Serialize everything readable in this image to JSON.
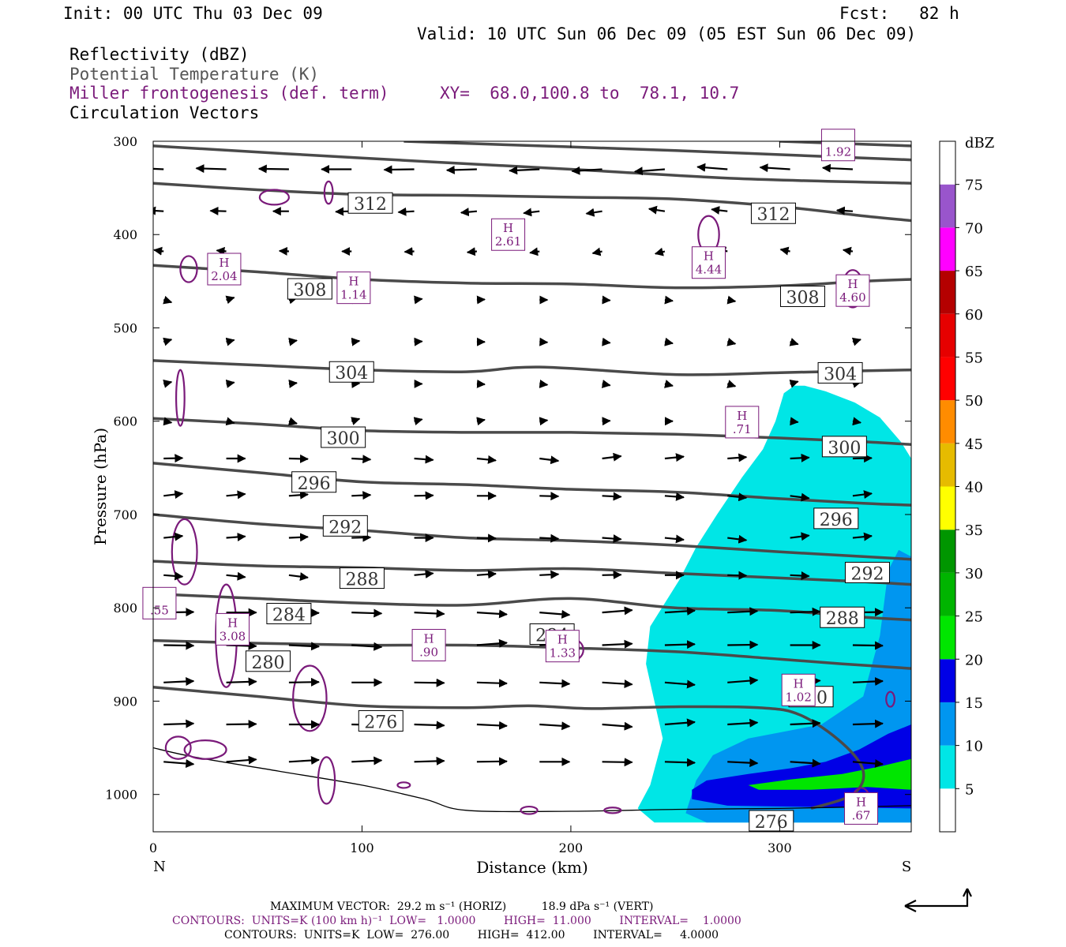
{
  "header": {
    "init": "Init: 00 UTC Thu 03 Dec 09",
    "fcst": "Fcst:   82 h",
    "valid": "Valid: 10 UTC Sun 06 Dec 09 (05 EST Sun 06 Dec 09)"
  },
  "fields": {
    "reflectivity": "Reflectivity (dBZ)",
    "theta": "Potential Temperature (K)",
    "frontogenesis": "Miller frontogenesis (def. term)",
    "xy": "XY=  68.0,100.8 to  78.1, 10.7",
    "vectors": "Circulation Vectors"
  },
  "footer": {
    "vector_line": "MAXIMUM VECTOR:  29.2 m s⁻¹ (HORIZ)          18.9 dPa s⁻¹ (VERT)",
    "contours_fronto": "CONTOURS:  UNITS=K (100 km h)⁻¹  LOW=   1.0000        HIGH=  11.000        INTERVAL=    1.0000",
    "contours_theta": "CONTOURS:  UNITS=K  LOW=  276.00        HIGH=  412.00        INTERVAL=     4.0000"
  },
  "colors": {
    "theta": "#4a4a4a",
    "fronto": "#7a1a7a",
    "vectors": "#000000"
  },
  "chart_data": {
    "type": "cross-section",
    "xlabel": "Distance (km)",
    "ylabel": "Pressure (hPa)",
    "xlim": [
      0,
      363
    ],
    "ylim": [
      300,
      1040
    ],
    "x_ticks": [
      0,
      100,
      200,
      300
    ],
    "y_ticks": [
      300,
      400,
      500,
      600,
      700,
      800,
      900,
      1000
    ],
    "endpoints": {
      "left": "N",
      "right": "S"
    },
    "colorbar": {
      "title": "dBZ",
      "levels": [
        5,
        10,
        15,
        20,
        25,
        30,
        35,
        40,
        45,
        50,
        55,
        60,
        65,
        70,
        75
      ],
      "colors": [
        "#ffffff",
        "#00e6e6",
        "#0096f0",
        "#0000e6",
        "#00e600",
        "#00b400",
        "#009600",
        "#ffff00",
        "#e6bb00",
        "#ff8c00",
        "#ff0000",
        "#e60000",
        "#b40000",
        "#ff00ff",
        "#9955cc",
        "#ffffff"
      ]
    },
    "theta_contours": [
      {
        "value": 276,
        "points": [
          [
            0,
            885
          ],
          [
            50,
            895
          ],
          [
            100,
            905
          ],
          [
            150,
            907
          ],
          [
            180,
            905
          ],
          [
            210,
            908
          ],
          [
            250,
            906
          ],
          [
            290,
            907
          ],
          [
            310,
            915
          ],
          [
            330,
            945
          ],
          [
            340,
            975
          ],
          [
            335,
            1000
          ],
          [
            315,
            1015
          ]
        ]
      },
      {
        "value": 280,
        "points": [
          [
            0,
            835
          ],
          [
            50,
            838
          ],
          [
            100,
            840
          ],
          [
            150,
            840
          ],
          [
            200,
            843
          ],
          [
            250,
            847
          ],
          [
            300,
            855
          ],
          [
            330,
            860
          ],
          [
            363,
            865
          ]
        ]
      },
      {
        "value": 284,
        "points": [
          [
            0,
            785
          ],
          [
            50,
            790
          ],
          [
            100,
            795
          ],
          [
            150,
            797
          ],
          [
            200,
            790
          ],
          [
            250,
            800
          ],
          [
            300,
            803
          ],
          [
            340,
            810
          ],
          [
            363,
            813
          ]
        ]
      },
      {
        "value": 288,
        "points": [
          [
            0,
            750
          ],
          [
            50,
            755
          ],
          [
            100,
            757
          ],
          [
            150,
            760
          ],
          [
            200,
            758
          ],
          [
            250,
            763
          ],
          [
            300,
            768
          ],
          [
            340,
            772
          ],
          [
            363,
            775
          ]
        ]
      },
      {
        "value": 292,
        "points": [
          [
            0,
            700
          ],
          [
            50,
            710
          ],
          [
            100,
            717
          ],
          [
            150,
            725
          ],
          [
            200,
            728
          ],
          [
            250,
            733
          ],
          [
            300,
            740
          ],
          [
            340,
            745
          ],
          [
            363,
            748
          ]
        ]
      },
      {
        "value": 296,
        "points": [
          [
            0,
            645
          ],
          [
            50,
            655
          ],
          [
            100,
            665
          ],
          [
            150,
            668
          ],
          [
            200,
            673
          ],
          [
            250,
            676
          ],
          [
            300,
            683
          ],
          [
            340,
            688
          ],
          [
            363,
            690
          ]
        ]
      },
      {
        "value": 300,
        "points": [
          [
            0,
            597
          ],
          [
            50,
            603
          ],
          [
            100,
            610
          ],
          [
            150,
            612
          ],
          [
            200,
            612
          ],
          [
            250,
            614
          ],
          [
            300,
            618
          ],
          [
            340,
            622
          ],
          [
            363,
            625
          ]
        ]
      },
      {
        "value": 304,
        "points": [
          [
            0,
            535
          ],
          [
            50,
            540
          ],
          [
            100,
            545
          ],
          [
            150,
            547
          ],
          [
            185,
            542
          ],
          [
            250,
            550
          ],
          [
            300,
            548
          ],
          [
            340,
            546
          ],
          [
            363,
            545
          ]
        ]
      },
      {
        "value": 308,
        "points": [
          [
            0,
            433
          ],
          [
            50,
            440
          ],
          [
            100,
            448
          ],
          [
            150,
            452
          ],
          [
            200,
            453
          ],
          [
            250,
            457
          ],
          [
            300,
            455
          ],
          [
            340,
            450
          ],
          [
            363,
            448
          ]
        ]
      },
      {
        "value": 312,
        "points": [
          [
            0,
            345
          ],
          [
            50,
            352
          ],
          [
            100,
            357
          ],
          [
            150,
            358
          ],
          [
            200,
            360
          ],
          [
            250,
            362
          ],
          [
            300,
            370
          ],
          [
            340,
            380
          ],
          [
            363,
            385
          ]
        ]
      },
      {
        "value": 316,
        "points": [
          [
            0,
            305
          ],
          [
            100,
            318
          ],
          [
            200,
            330
          ],
          [
            280,
            340
          ],
          [
            363,
            345
          ]
        ]
      },
      {
        "value": 320,
        "points": [
          [
            120,
            300
          ],
          [
            250,
            310
          ],
          [
            363,
            320
          ]
        ]
      },
      {
        "value": 324,
        "points": [
          [
            300,
            300
          ],
          [
            363,
            305
          ]
        ]
      }
    ],
    "theta_labels": [
      {
        "value": 276,
        "x": 109,
        "p": 922
      },
      {
        "value": 280,
        "x": 55,
        "p": 858
      },
      {
        "value": 284,
        "x": 65,
        "p": 807
      },
      {
        "value": 288,
        "x": 100,
        "p": 769
      },
      {
        "value": 292,
        "x": 92,
        "p": 713
      },
      {
        "value": 296,
        "x": 77,
        "p": 666
      },
      {
        "value": 300,
        "x": 91,
        "p": 618
      },
      {
        "value": 304,
        "x": 95,
        "p": 548
      },
      {
        "value": 308,
        "x": 75,
        "p": 459
      },
      {
        "value": 312,
        "x": 104,
        "p": 367
      },
      {
        "value": 312,
        "x": 297,
        "p": 378
      },
      {
        "value": 308,
        "x": 311,
        "p": 467
      },
      {
        "value": 304,
        "x": 329,
        "p": 549
      },
      {
        "value": 300,
        "x": 331,
        "p": 628
      },
      {
        "value": 296,
        "x": 327,
        "p": 705
      },
      {
        "value": 292,
        "x": 342,
        "p": 763
      },
      {
        "value": 288,
        "x": 330,
        "p": 811
      },
      {
        "value": 280,
        "x": 315,
        "p": 896
      },
      {
        "value": 284,
        "x": 191,
        "p": 829
      },
      {
        "value": 276,
        "x": 296,
        "p": 1029
      }
    ],
    "fronto_maxima": [
      {
        "label": "H",
        "value": "2.04",
        "x": 34,
        "p": 437
      },
      {
        "label": "H",
        "value": "1.14",
        "x": 96,
        "p": 457
      },
      {
        "label": "H",
        "value": "2.61",
        "x": 170,
        "p": 400
      },
      {
        "label": "H",
        "value": "4.44",
        "x": 266,
        "p": 430
      },
      {
        "label": "H",
        "value": "4.60",
        "x": 335,
        "p": 460
      },
      {
        "label": "H",
        "value": ".71",
        "x": 282,
        "p": 601
      },
      {
        "label": "H",
        "value": "3.08",
        "x": 38,
        "p": 823
      },
      {
        "label": "H",
        "value": ".90",
        "x": 132,
        "p": 840
      },
      {
        "label": "H",
        "value": "1.33",
        "x": 196,
        "p": 841
      },
      {
        "label": "H",
        "value": "1.02",
        "x": 309,
        "p": 888
      },
      {
        "label": "",
        "value": "1.92",
        "x": 328,
        "p": 304
      },
      {
        "label": "",
        "value": ".55",
        "x": 3,
        "p": 795
      },
      {
        "label": "H",
        "value": ".67",
        "x": 339,
        "p": 1015
      }
    ],
    "ground_pressure": [
      [
        0,
        950
      ],
      [
        20,
        960
      ],
      [
        60,
        975
      ],
      [
        100,
        990
      ],
      [
        130,
        1005
      ],
      [
        150,
        1017
      ],
      [
        200,
        1018
      ],
      [
        250,
        1016
      ],
      [
        300,
        1015
      ],
      [
        363,
        1012
      ]
    ]
  }
}
